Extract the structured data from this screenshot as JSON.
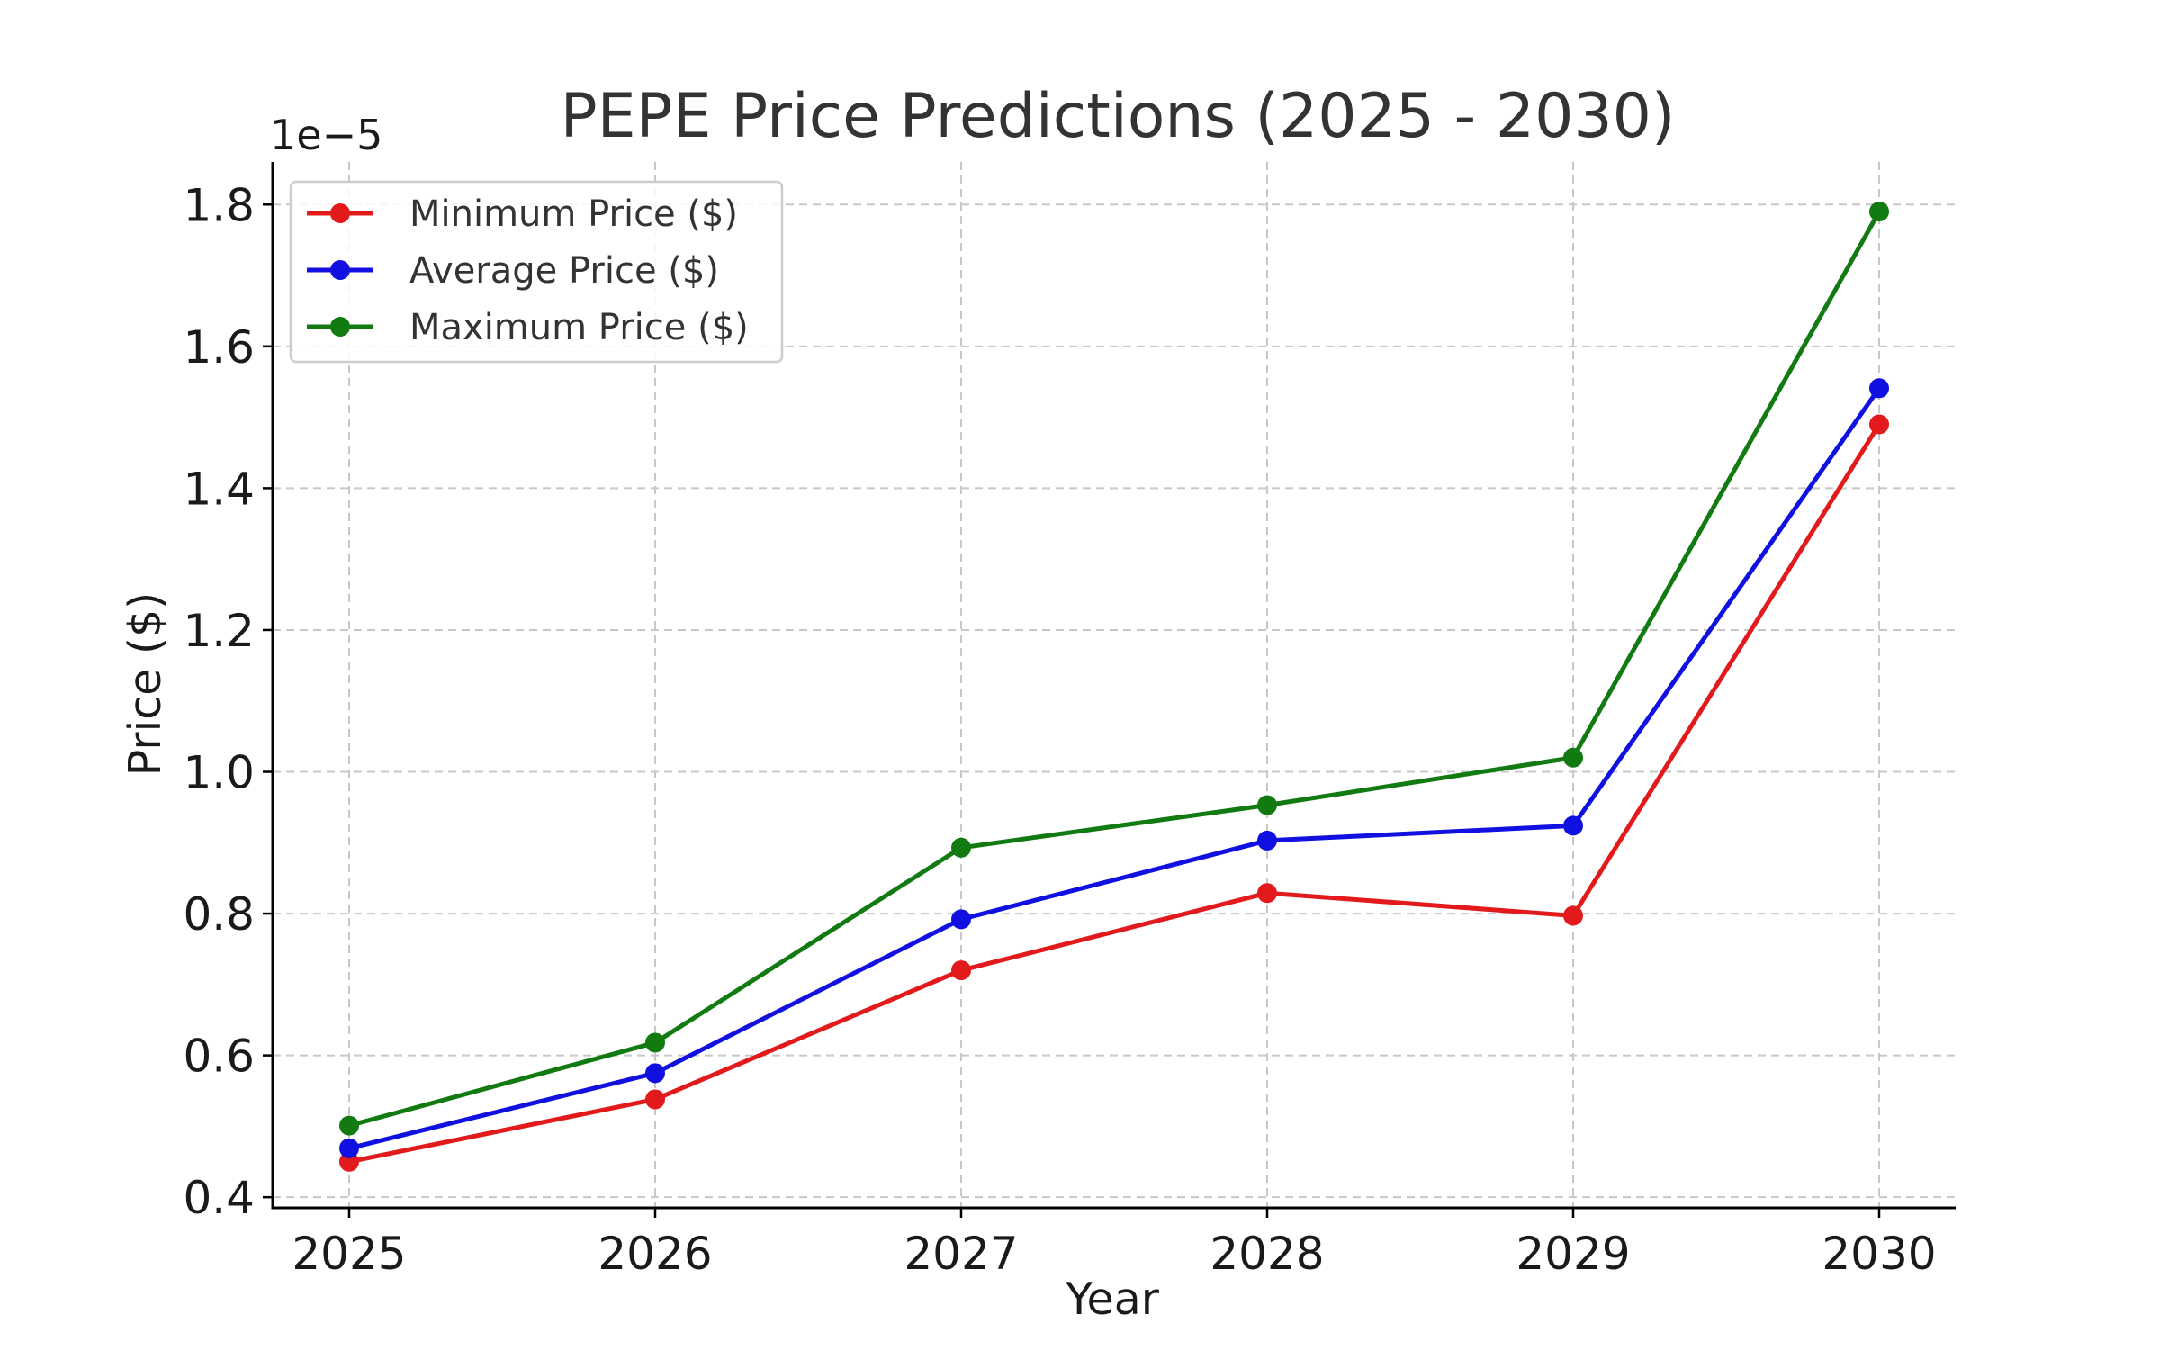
{
  "chart_data": {
    "type": "line",
    "title": "PEPE Price Predictions (2025 - 2030)",
    "xlabel": "Year",
    "ylabel": "Price ($)",
    "y_offset_label": "1e−5",
    "y_scale_factor": 1e-05,
    "x": [
      2025,
      2026,
      2027,
      2028,
      2029,
      2030
    ],
    "x_tick_labels": [
      "2025",
      "2026",
      "2027",
      "2028",
      "2029",
      "2030"
    ],
    "y_ticks": [
      0.4,
      0.6,
      0.8,
      1.0,
      1.2,
      1.4,
      1.6,
      1.8
    ],
    "y_tick_labels": [
      "0.4",
      "0.6",
      "0.8",
      "1.0",
      "1.2",
      "1.4",
      "1.6",
      "1.8"
    ],
    "ylim": [
      0.385,
      1.86
    ],
    "xlim": [
      2024.75,
      2030.25
    ],
    "grid": true,
    "legend_position": "upper-left",
    "series": [
      {
        "name": "Minimum Price ($)",
        "color": "#e31a1c",
        "values": [
          0.45,
          0.538,
          0.72,
          0.829,
          0.797,
          1.49
        ]
      },
      {
        "name": "Average Price ($)",
        "color": "#1010e0",
        "values": [
          0.469,
          0.575,
          0.792,
          0.903,
          0.924,
          1.541
        ]
      },
      {
        "name": "Maximum Price ($)",
        "color": "#117a11",
        "values": [
          0.501,
          0.618,
          0.893,
          0.953,
          1.02,
          1.79
        ]
      }
    ]
  }
}
